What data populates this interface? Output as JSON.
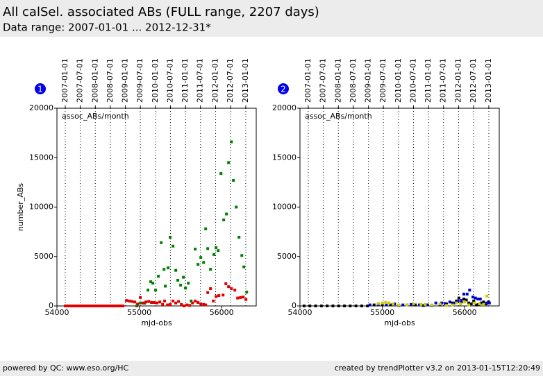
{
  "header": {
    "title": "All calSel. associated ABs (FULL range, 2207 days)",
    "subtitle": "Data range: 2007-01-01 ... 2012-12-31*"
  },
  "footer": {
    "left": "powered by QC: www.eso.org/HC",
    "right": "created by trendPlotter v3.2 on 2013-01-15T12:20:49"
  },
  "chart_data": [
    {
      "type": "scatter",
      "panel_label": "1",
      "annotation": "assoc_ABs/month",
      "xlabel": "mjd-obs",
      "ylabel": "number_ABs",
      "xlim": [
        54000,
        56420
      ],
      "xticks": [
        54000,
        55000,
        56000
      ],
      "ylim": [
        0,
        20000
      ],
      "yticks": [
        0,
        5000,
        10000,
        15000,
        20000
      ],
      "grid": true,
      "x2ticks": [
        {
          "value": 54101,
          "label": "2007-01-01"
        },
        {
          "value": 54282,
          "label": "2007-07-01"
        },
        {
          "value": 54466,
          "label": "2008-01-01"
        },
        {
          "value": 54648,
          "label": "2008-07-01"
        },
        {
          "value": 54832,
          "label": "2009-01-01"
        },
        {
          "value": 55013,
          "label": "2009-07-01"
        },
        {
          "value": 55197,
          "label": "2010-01-01"
        },
        {
          "value": 55378,
          "label": "2010-07-01"
        },
        {
          "value": 55562,
          "label": "2011-01-01"
        },
        {
          "value": 55743,
          "label": "2011-07-01"
        },
        {
          "value": 55927,
          "label": "2012-01-01"
        },
        {
          "value": 56109,
          "label": "2012-07-01"
        },
        {
          "value": 56293,
          "label": "2013-01-01"
        }
      ],
      "series": [
        {
          "color": "#008000",
          "x": [
            54970,
            55013,
            55063,
            55105,
            55139,
            55165,
            55198,
            55232,
            55266,
            55300,
            55316,
            55350,
            55375,
            55409,
            55443,
            55468,
            55502,
            55536,
            55561,
            55595,
            55629,
            55679,
            55713,
            55747,
            55781,
            55806,
            55831,
            55865,
            55907,
            55932,
            55958,
            55992,
            56025,
            56059,
            56084,
            56118,
            56143,
            56177,
            56211,
            56245,
            56270,
            56304
          ],
          "values": [
            0,
            300,
            280,
            1600,
            2450,
            2300,
            1600,
            3000,
            6400,
            3700,
            2000,
            3850,
            6950,
            6050,
            3600,
            2600,
            2100,
            2900,
            1800,
            2300,
            500,
            5750,
            4200,
            4900,
            4400,
            7800,
            5800,
            3700,
            5200,
            5900,
            5600,
            13400,
            8700,
            9300,
            14500,
            16600,
            12700,
            10000,
            6950,
            5100,
            3950,
            1400
          ]
        },
        {
          "color": "#e00000",
          "x": [
            54101,
            54131,
            54162,
            54192,
            54223,
            54253,
            54284,
            54314,
            54345,
            54375,
            54406,
            54436,
            54467,
            54497,
            54528,
            54558,
            54589,
            54619,
            54650,
            54680,
            54711,
            54741,
            54772,
            54802,
            54844,
            54878,
            54911,
            54945,
            54979,
            55013,
            55046,
            55080,
            55114,
            55148,
            55181,
            55215,
            55249,
            55283,
            55308,
            55342,
            55376,
            55409,
            55443,
            55477,
            55511,
            55544,
            55578,
            55612,
            55646,
            55679,
            55713,
            55747,
            55781,
            55806,
            55831,
            55865,
            55899,
            55932,
            55966,
            56017,
            56051,
            56084,
            56118,
            56160,
            56194,
            56228,
            56262,
            56295
          ],
          "values": [
            0,
            0,
            0,
            0,
            0,
            0,
            0,
            0,
            0,
            0,
            0,
            0,
            0,
            0,
            0,
            0,
            0,
            0,
            0,
            0,
            0,
            0,
            0,
            0,
            550,
            500,
            450,
            400,
            200,
            850,
            300,
            400,
            450,
            350,
            350,
            300,
            400,
            150,
            500,
            100,
            150,
            500,
            300,
            450,
            150,
            0,
            100,
            50,
            300,
            500,
            350,
            200,
            150,
            100,
            1350,
            1750,
            500,
            950,
            1050,
            1100,
            2250,
            1950,
            1750,
            1600,
            800,
            850,
            900,
            650
          ]
        }
      ]
    },
    {
      "type": "scatter",
      "panel_label": "2",
      "annotation": "assoc_ABs/month",
      "xlabel": "mjd-obs",
      "xlim": [
        54000,
        56420
      ],
      "xticks": [
        54000,
        55000,
        56000
      ],
      "ylim": [
        0,
        20000
      ],
      "yticks": [
        0,
        5000,
        10000,
        15000,
        20000
      ],
      "grid": true,
      "x2ticks": [
        {
          "value": 54101,
          "label": "2007-01-01"
        },
        {
          "value": 54282,
          "label": "2007-07-01"
        },
        {
          "value": 54466,
          "label": "2008-01-01"
        },
        {
          "value": 54648,
          "label": "2008-07-01"
        },
        {
          "value": 54832,
          "label": "2009-01-01"
        },
        {
          "value": 55013,
          "label": "2009-07-01"
        },
        {
          "value": 55197,
          "label": "2010-01-01"
        },
        {
          "value": 55378,
          "label": "2010-07-01"
        },
        {
          "value": 55562,
          "label": "2011-01-01"
        },
        {
          "value": 55743,
          "label": "2011-07-01"
        },
        {
          "value": 55927,
          "label": "2012-01-01"
        },
        {
          "value": 56109,
          "label": "2012-07-01"
        },
        {
          "value": 56293,
          "label": "2013-01-01"
        }
      ],
      "series": [
        {
          "color": "#000000",
          "x": [
            54050,
            54120,
            54190,
            54260,
            54330,
            54400,
            54470,
            54540,
            54610,
            54680,
            54750,
            54820,
            54900,
            55000,
            55100,
            55200,
            55300,
            55400,
            55500,
            55600,
            55700,
            55780,
            55850,
            55900,
            55930,
            55960,
            55990,
            56020,
            56050,
            56080,
            56110,
            56140,
            56170,
            56200,
            56230,
            56260,
            56290
          ],
          "values": [
            0,
            0,
            0,
            0,
            0,
            0,
            0,
            0,
            0,
            0,
            0,
            0,
            100,
            150,
            100,
            50,
            100,
            100,
            50,
            50,
            100,
            200,
            300,
            500,
            800,
            400,
            700,
            600,
            300,
            200,
            500,
            100,
            150,
            300,
            400,
            200,
            400
          ]
        },
        {
          "color": "#0000cc",
          "x": [
            54850,
            54950,
            55050,
            55150,
            55250,
            55350,
            55450,
            55550,
            55650,
            55720,
            55760,
            55820,
            55870,
            55920,
            55960,
            55990,
            56030,
            56060,
            56100,
            56130,
            56160,
            56190,
            56230,
            56270,
            56300
          ],
          "values": [
            100,
            150,
            100,
            200,
            100,
            150,
            100,
            100,
            300,
            300,
            250,
            400,
            300,
            500,
            550,
            1200,
            1200,
            1600,
            900,
            800,
            700,
            700,
            200,
            300,
            300
          ]
        },
        {
          "color": "#cccc00",
          "x": [
            54950,
            55000,
            55040,
            55080,
            55130,
            55200,
            55300,
            55380,
            55470,
            55520,
            55600,
            55700,
            55780,
            55850,
            55900,
            55950,
            56000,
            56050,
            56120,
            56180,
            56230,
            56270
          ],
          "values": [
            250,
            300,
            350,
            300,
            200,
            100,
            100,
            200,
            150,
            150,
            100,
            200,
            50,
            100,
            300,
            200,
            400,
            100,
            300,
            200,
            150,
            1000
          ]
        }
      ]
    }
  ]
}
